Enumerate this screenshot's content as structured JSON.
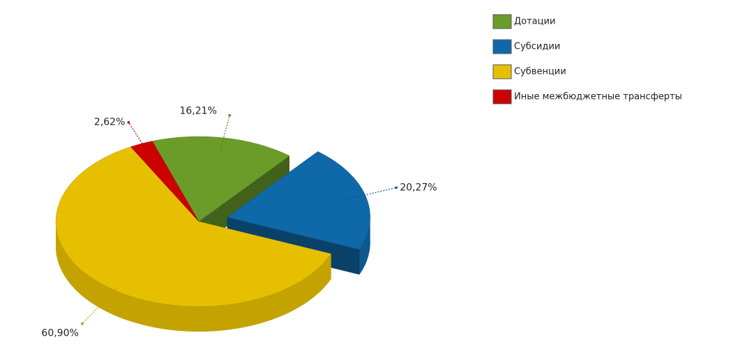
{
  "chart_data": {
    "type": "pie3d",
    "categories": [
      "Дотации",
      "Субсидии",
      "Субвенции",
      "Иные межбюджетные трансферты"
    ],
    "values": [
      16.21,
      20.27,
      60.9,
      2.62
    ],
    "value_labels": [
      "16,21%",
      "20,27%",
      "60,90%",
      "2,62%"
    ],
    "colors": [
      "#6b9c2a",
      "#0f69a8",
      "#e6c000",
      "#cc0000"
    ],
    "legend": "top-right"
  }
}
